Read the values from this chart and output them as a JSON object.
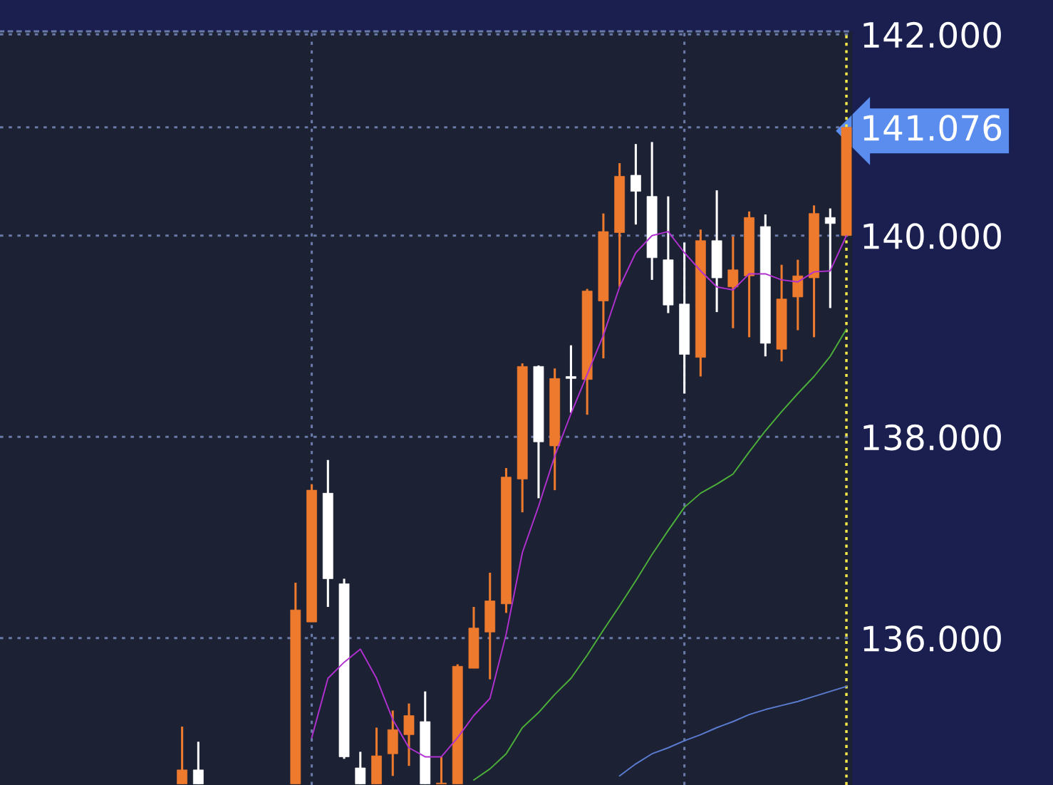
{
  "chart_data": {
    "type": "candlestick",
    "categories": [
      null,
      null,
      null,
      null,
      null,
      null,
      null,
      null,
      null,
      null,
      null,
      null,
      null,
      null,
      null,
      null,
      null,
      null,
      null,
      null,
      null,
      null,
      null,
      null,
      null,
      null,
      null,
      null,
      null,
      null,
      null,
      null,
      null,
      null,
      null,
      null,
      null,
      null,
      null,
      null,
      null,
      null,
      null,
      null
    ],
    "ohlc": [
      null,
      null,
      [
        134.55,
        135.12,
        134.55,
        134.69
      ],
      [
        134.69,
        134.97,
        134.55,
        134.55
      ],
      null,
      null,
      null,
      null,
      null,
      [
        134.55,
        136.55,
        134.55,
        136.28
      ],
      [
        136.16,
        137.53,
        136.16,
        137.47
      ],
      [
        137.44,
        137.77,
        136.31,
        136.59
      ],
      [
        136.54,
        136.59,
        134.8,
        134.82
      ],
      [
        134.71,
        134.87,
        134.55,
        134.55
      ],
      [
        134.55,
        135.11,
        134.55,
        134.83
      ],
      [
        134.85,
        135.28,
        134.63,
        135.09
      ],
      [
        135.04,
        135.35,
        134.73,
        135.23
      ],
      [
        135.17,
        135.47,
        134.55,
        134.55
      ],
      [
        134.55,
        134.82,
        134.55,
        134.56
      ],
      [
        134.55,
        135.74,
        134.55,
        135.72
      ],
      [
        135.7,
        136.31,
        135.7,
        136.1
      ],
      [
        136.06,
        136.65,
        135.59,
        136.37
      ],
      [
        136.34,
        137.69,
        136.25,
        137.6
      ],
      [
        137.58,
        138.73,
        137.25,
        138.7
      ],
      [
        138.7,
        138.71,
        137.39,
        137.95
      ],
      [
        137.91,
        138.68,
        137.47,
        138.58
      ],
      [
        138.6,
        138.91,
        138.24,
        138.58
      ],
      [
        138.57,
        139.47,
        138.22,
        139.45
      ],
      [
        139.35,
        140.22,
        138.78,
        140.04
      ],
      [
        140.03,
        140.72,
        139.49,
        140.59
      ],
      [
        140.6,
        140.91,
        140.11,
        140.44
      ],
      [
        140.39,
        140.93,
        139.56,
        139.78
      ],
      [
        139.76,
        140.39,
        139.23,
        139.31
      ],
      [
        139.32,
        139.93,
        138.43,
        138.82
      ],
      [
        138.79,
        140.06,
        138.6,
        139.95
      ],
      [
        139.95,
        140.45,
        139.24,
        139.58
      ],
      [
        139.49,
        139.99,
        139.08,
        139.66
      ],
      [
        139.6,
        140.24,
        138.99,
        140.18
      ],
      [
        140.09,
        140.21,
        138.8,
        138.93
      ],
      [
        138.87,
        139.71,
        138.75,
        139.37
      ],
      [
        139.39,
        139.76,
        139.06,
        139.6
      ],
      [
        139.58,
        140.3,
        138.99,
        140.22
      ],
      [
        140.18,
        140.27,
        139.28,
        140.12
      ],
      [
        140.0,
        141.076,
        140.0,
        141.076
      ]
    ],
    "colors": [
      null,
      null,
      "#ee7a2e",
      "#ffffff",
      null,
      null,
      null,
      null,
      null,
      "#ee7a2e",
      "#ee7a2e",
      "#ffffff",
      "#ffffff",
      "#ffffff",
      "#ee7a2e",
      "#ee7a2e",
      "#ee7a2e",
      "#ffffff",
      "#ee7a2e",
      "#ee7a2e",
      "#ee7a2e",
      "#ee7a2e",
      "#ee7a2e",
      "#ee7a2e",
      "#ffffff",
      "#ee7a2e",
      "#ffffff",
      "#ee7a2e",
      "#ee7a2e",
      "#ee7a2e",
      "#ffffff",
      "#ffffff",
      "#ffffff",
      "#ffffff",
      "#ee7a2e",
      "#ffffff",
      "#ee7a2e",
      "#ee7a2e",
      "#ffffff",
      "#ee7a2e",
      "#ee7a2e",
      "#ee7a2e",
      "#ffffff",
      "#ee7a2e"
    ],
    "series": [
      {
        "type": "line",
        "color": "#b030d0",
        "values": [
          null,
          null,
          null,
          null,
          null,
          null,
          null,
          null,
          null,
          null,
          135.01,
          135.6,
          135.76,
          135.89,
          135.6,
          135.19,
          134.91,
          134.82,
          134.82,
          135.01,
          135.23,
          135.4,
          136.04,
          136.85,
          137.31,
          137.81,
          138.23,
          138.62,
          139.01,
          139.49,
          139.83,
          140.0,
          140.04,
          139.83,
          139.65,
          139.49,
          139.46,
          139.62,
          139.62,
          139.56,
          139.54,
          139.64,
          139.65,
          140.0
        ]
      },
      {
        "type": "line",
        "color": "#4caf3a",
        "values": [
          null,
          null,
          null,
          null,
          null,
          null,
          null,
          null,
          null,
          null,
          null,
          null,
          null,
          null,
          null,
          null,
          null,
          null,
          null,
          null,
          134.59,
          134.7,
          134.85,
          135.11,
          135.26,
          135.44,
          135.6,
          135.83,
          136.08,
          136.32,
          136.57,
          136.83,
          137.07,
          137.3,
          137.44,
          137.53,
          137.63,
          137.85,
          138.06,
          138.25,
          138.43,
          138.6,
          138.8,
          139.07
        ]
      },
      {
        "type": "line",
        "color": "#5a7bd0",
        "values": [
          null,
          null,
          null,
          null,
          null,
          null,
          null,
          null,
          null,
          null,
          null,
          null,
          null,
          null,
          null,
          null,
          null,
          null,
          null,
          null,
          null,
          null,
          null,
          null,
          null,
          null,
          null,
          null,
          null,
          134.63,
          134.75,
          134.85,
          134.91,
          134.98,
          135.04,
          135.11,
          135.17,
          135.24,
          135.29,
          135.33,
          135.37,
          135.42,
          135.47,
          135.52
        ]
      }
    ],
    "ylim": [
      134.54,
      142.03
    ],
    "yticks": [
      {
        "value": 136,
        "label": "136.000"
      },
      {
        "value": 138,
        "label": "138.000"
      },
      {
        "value": 140,
        "label": "140.000"
      },
      {
        "value": 141.076,
        "label": "141.076"
      },
      {
        "value": 142,
        "label": "142.000"
      }
    ],
    "tick_labels": "y",
    "grid": true
  }
}
